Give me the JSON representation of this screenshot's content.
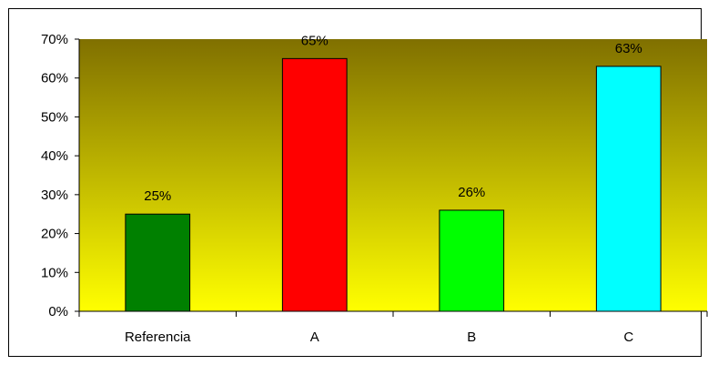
{
  "chart_data": {
    "type": "bar",
    "title": "",
    "xlabel": "",
    "ylabel": "",
    "categories": [
      "Referencia",
      "A",
      "B",
      "C"
    ],
    "values": [
      25,
      65,
      26,
      63
    ],
    "data_labels": [
      "25%",
      "65%",
      "26%",
      "63%"
    ],
    "bar_colors": [
      "#008000",
      "#ff0000",
      "#00ff00",
      "#00ffff"
    ],
    "ylim": [
      0,
      70
    ],
    "yticks": [
      0,
      10,
      20,
      30,
      40,
      50,
      60,
      70
    ],
    "ytick_labels": [
      "0%",
      "10%",
      "20%",
      "30%",
      "40%",
      "50%",
      "60%",
      "70%"
    ],
    "grid": false,
    "legend": "none",
    "plot_background_gradient": [
      "#807000",
      "#ffff00"
    ]
  }
}
